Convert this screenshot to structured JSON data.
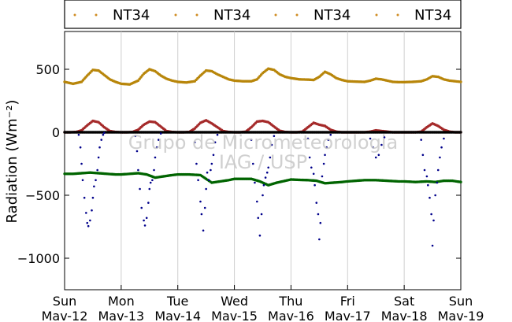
{
  "chart_data": {
    "type": "scatter",
    "ylabel": "Radiation (Wm⁻²)",
    "ylim": [
      -1250,
      800
    ],
    "xlim": [
      0,
      7
    ],
    "yticks": [
      500,
      0,
      -500,
      -1000
    ],
    "ytick_labels": [
      "500",
      "0",
      "−500",
      "−1000"
    ],
    "xticks": [
      0,
      1,
      2,
      3,
      4,
      5,
      6,
      7
    ],
    "xtick_labels": [
      {
        "day": "Sun",
        "date": "Mav-12"
      },
      {
        "day": "Mon",
        "date": "Mav-13"
      },
      {
        "day": "Tue",
        "date": "Mav-14"
      },
      {
        "day": "Wed",
        "date": "Mav-15"
      },
      {
        "day": "Thu",
        "date": "Mav-16"
      },
      {
        "day": "Fri",
        "date": "Mav-17"
      },
      {
        "day": "Sat",
        "date": "Mav-18"
      },
      {
        "day": "Sun",
        "date": "Mav-19"
      }
    ],
    "grid": "vertical",
    "legend_position": "top",
    "legend": [
      "NT34",
      "NT34",
      "NT34",
      "NT34"
    ],
    "watermark": [
      "Grupo de Micrometeorologia",
      "IAG / USP"
    ],
    "series": [
      {
        "color": "#b8860b",
        "x": [
          0,
          0.15,
          0.3,
          0.4,
          0.5,
          0.6,
          0.7,
          0.8,
          0.9,
          1.0,
          1.15,
          1.3,
          1.4,
          1.5,
          1.6,
          1.7,
          1.8,
          1.9,
          2.0,
          2.15,
          2.3,
          2.4,
          2.5,
          2.6,
          2.7,
          2.8,
          2.9,
          3.0,
          3.15,
          3.3,
          3.4,
          3.5,
          3.6,
          3.7,
          3.8,
          3.9,
          4.0,
          4.15,
          4.3,
          4.4,
          4.5,
          4.6,
          4.7,
          4.8,
          4.9,
          5.0,
          5.15,
          5.3,
          5.4,
          5.5,
          5.6,
          5.7,
          5.8,
          5.9,
          6.0,
          6.15,
          6.3,
          6.4,
          6.5,
          6.6,
          6.7,
          6.8,
          6.9,
          7.0
        ],
        "y": [
          400,
          385,
          400,
          450,
          495,
          490,
          455,
          420,
          400,
          385,
          380,
          410,
          465,
          500,
          485,
          450,
          425,
          410,
          400,
          395,
          405,
          450,
          490,
          485,
          460,
          440,
          420,
          410,
          405,
          405,
          420,
          470,
          505,
          495,
          460,
          440,
          430,
          420,
          418,
          415,
          440,
          480,
          460,
          430,
          415,
          405,
          402,
          400,
          410,
          425,
          420,
          410,
          400,
          398,
          398,
          400,
          405,
          420,
          445,
          440,
          420,
          410,
          405,
          400
        ]
      },
      {
        "color": "#a52a2a",
        "x": [
          0,
          0.1,
          0.2,
          0.3,
          0.4,
          0.5,
          0.6,
          0.7,
          0.8,
          0.9,
          1.0,
          1.1,
          1.2,
          1.3,
          1.4,
          1.5,
          1.6,
          1.7,
          1.8,
          1.9,
          2.0,
          2.1,
          2.2,
          2.3,
          2.4,
          2.5,
          2.6,
          2.7,
          2.8,
          2.9,
          3.0,
          3.1,
          3.2,
          3.3,
          3.4,
          3.5,
          3.6,
          3.7,
          3.8,
          3.9,
          4.0,
          4.1,
          4.2,
          4.3,
          4.4,
          4.5,
          4.6,
          4.7,
          4.8,
          4.9,
          5.0,
          5.1,
          5.2,
          5.3,
          5.4,
          5.5,
          5.6,
          5.7,
          5.8,
          5.9,
          6.0,
          6.1,
          6.2,
          6.3,
          6.4,
          6.5,
          6.6,
          6.7,
          6.8,
          6.9,
          7.0
        ],
        "y": [
          0,
          0,
          2,
          15,
          55,
          90,
          80,
          40,
          10,
          2,
          0,
          0,
          2,
          20,
          60,
          85,
          80,
          45,
          10,
          2,
          0,
          0,
          2,
          30,
          75,
          95,
          70,
          40,
          10,
          2,
          0,
          0,
          5,
          40,
          85,
          90,
          80,
          45,
          12,
          2,
          0,
          0,
          5,
          40,
          75,
          60,
          50,
          20,
          5,
          0,
          0,
          0,
          0,
          0,
          5,
          15,
          10,
          5,
          0,
          0,
          0,
          0,
          0,
          5,
          40,
          70,
          50,
          20,
          5,
          0,
          0
        ]
      },
      {
        "color": "#000000",
        "x": [
          0,
          1,
          2,
          3,
          4,
          5,
          6,
          7
        ],
        "y": [
          0,
          0,
          0,
          0,
          0,
          0,
          0,
          0
        ]
      },
      {
        "color": "#006400",
        "x": [
          0,
          0.15,
          0.3,
          0.45,
          0.6,
          0.75,
          0.9,
          1.0,
          1.15,
          1.3,
          1.45,
          1.6,
          1.75,
          1.9,
          2.0,
          2.2,
          2.4,
          2.5,
          2.6,
          2.75,
          2.9,
          3.0,
          3.15,
          3.3,
          3.45,
          3.6,
          3.75,
          3.9,
          4.0,
          4.15,
          4.3,
          4.45,
          4.6,
          4.75,
          4.9,
          5.0,
          5.15,
          5.3,
          5.5,
          5.7,
          5.9,
          6.0,
          6.2,
          6.4,
          6.55,
          6.7,
          6.85,
          7.0
        ],
        "y": [
          -330,
          -330,
          -325,
          -320,
          -325,
          -330,
          -335,
          -335,
          -330,
          -325,
          -335,
          -360,
          -350,
          -340,
          -335,
          -335,
          -340,
          -370,
          -400,
          -390,
          -380,
          -370,
          -370,
          -370,
          -390,
          -420,
          -400,
          -385,
          -375,
          -378,
          -380,
          -385,
          -405,
          -400,
          -395,
          -390,
          -385,
          -380,
          -380,
          -385,
          -390,
          -390,
          -395,
          -390,
          -395,
          -385,
          -385,
          -395
        ]
      },
      {
        "color": "#00008b",
        "x": [
          0.25,
          0.28,
          0.3,
          0.32,
          0.35,
          0.38,
          0.4,
          0.42,
          0.45,
          0.48,
          0.5,
          0.52,
          0.55,
          0.58,
          0.6,
          0.62,
          0.65,
          0.68,
          0.7,
          1.25,
          1.28,
          1.3,
          1.33,
          1.36,
          1.4,
          1.42,
          1.45,
          1.48,
          1.5,
          1.52,
          1.55,
          1.58,
          1.6,
          1.63,
          1.66,
          1.7,
          2.3,
          2.33,
          2.36,
          2.4,
          2.42,
          2.45,
          2.48,
          2.5,
          2.52,
          2.55,
          2.58,
          2.6,
          2.63,
          2.66,
          2.7,
          3.3,
          3.33,
          3.36,
          3.4,
          3.42,
          3.45,
          3.48,
          3.5,
          3.52,
          3.55,
          3.58,
          3.6,
          3.63,
          3.66,
          3.7,
          4.3,
          4.33,
          4.36,
          4.4,
          4.42,
          4.45,
          4.48,
          4.5,
          4.52,
          4.55,
          4.58,
          4.6,
          4.63,
          4.66,
          4.7,
          5.4,
          5.45,
          5.5,
          5.55,
          5.6,
          5.65,
          6.3,
          6.33,
          6.36,
          6.4,
          6.42,
          6.45,
          6.48,
          6.5,
          6.52,
          6.55,
          6.58,
          6.6,
          6.63,
          6.66,
          6.7
        ],
        "y": [
          -20,
          -120,
          -250,
          -380,
          -520,
          -640,
          -720,
          -745,
          -700,
          -620,
          -520,
          -430,
          -380,
          -300,
          -200,
          -120,
          -60,
          -20,
          -5,
          -30,
          -150,
          -300,
          -450,
          -600,
          -700,
          -740,
          -680,
          -560,
          -450,
          -400,
          -380,
          -300,
          -200,
          -120,
          -60,
          -10,
          -80,
          -250,
          -380,
          -550,
          -650,
          -780,
          -600,
          -450,
          -320,
          -380,
          -300,
          -250,
          -180,
          -80,
          -20,
          -60,
          -250,
          -400,
          -550,
          -680,
          -820,
          -650,
          -500,
          -420,
          -360,
          -320,
          -280,
          -200,
          -100,
          -30,
          -50,
          -200,
          -280,
          -330,
          -420,
          -560,
          -650,
          -850,
          -720,
          -350,
          -250,
          -180,
          -120,
          -60,
          -20,
          -50,
          -120,
          -200,
          -180,
          -100,
          -40,
          -60,
          -180,
          -300,
          -350,
          -420,
          -520,
          -650,
          -900,
          -700,
          -500,
          -400,
          -300,
          -200,
          -120,
          -50
        ]
      }
    ]
  }
}
